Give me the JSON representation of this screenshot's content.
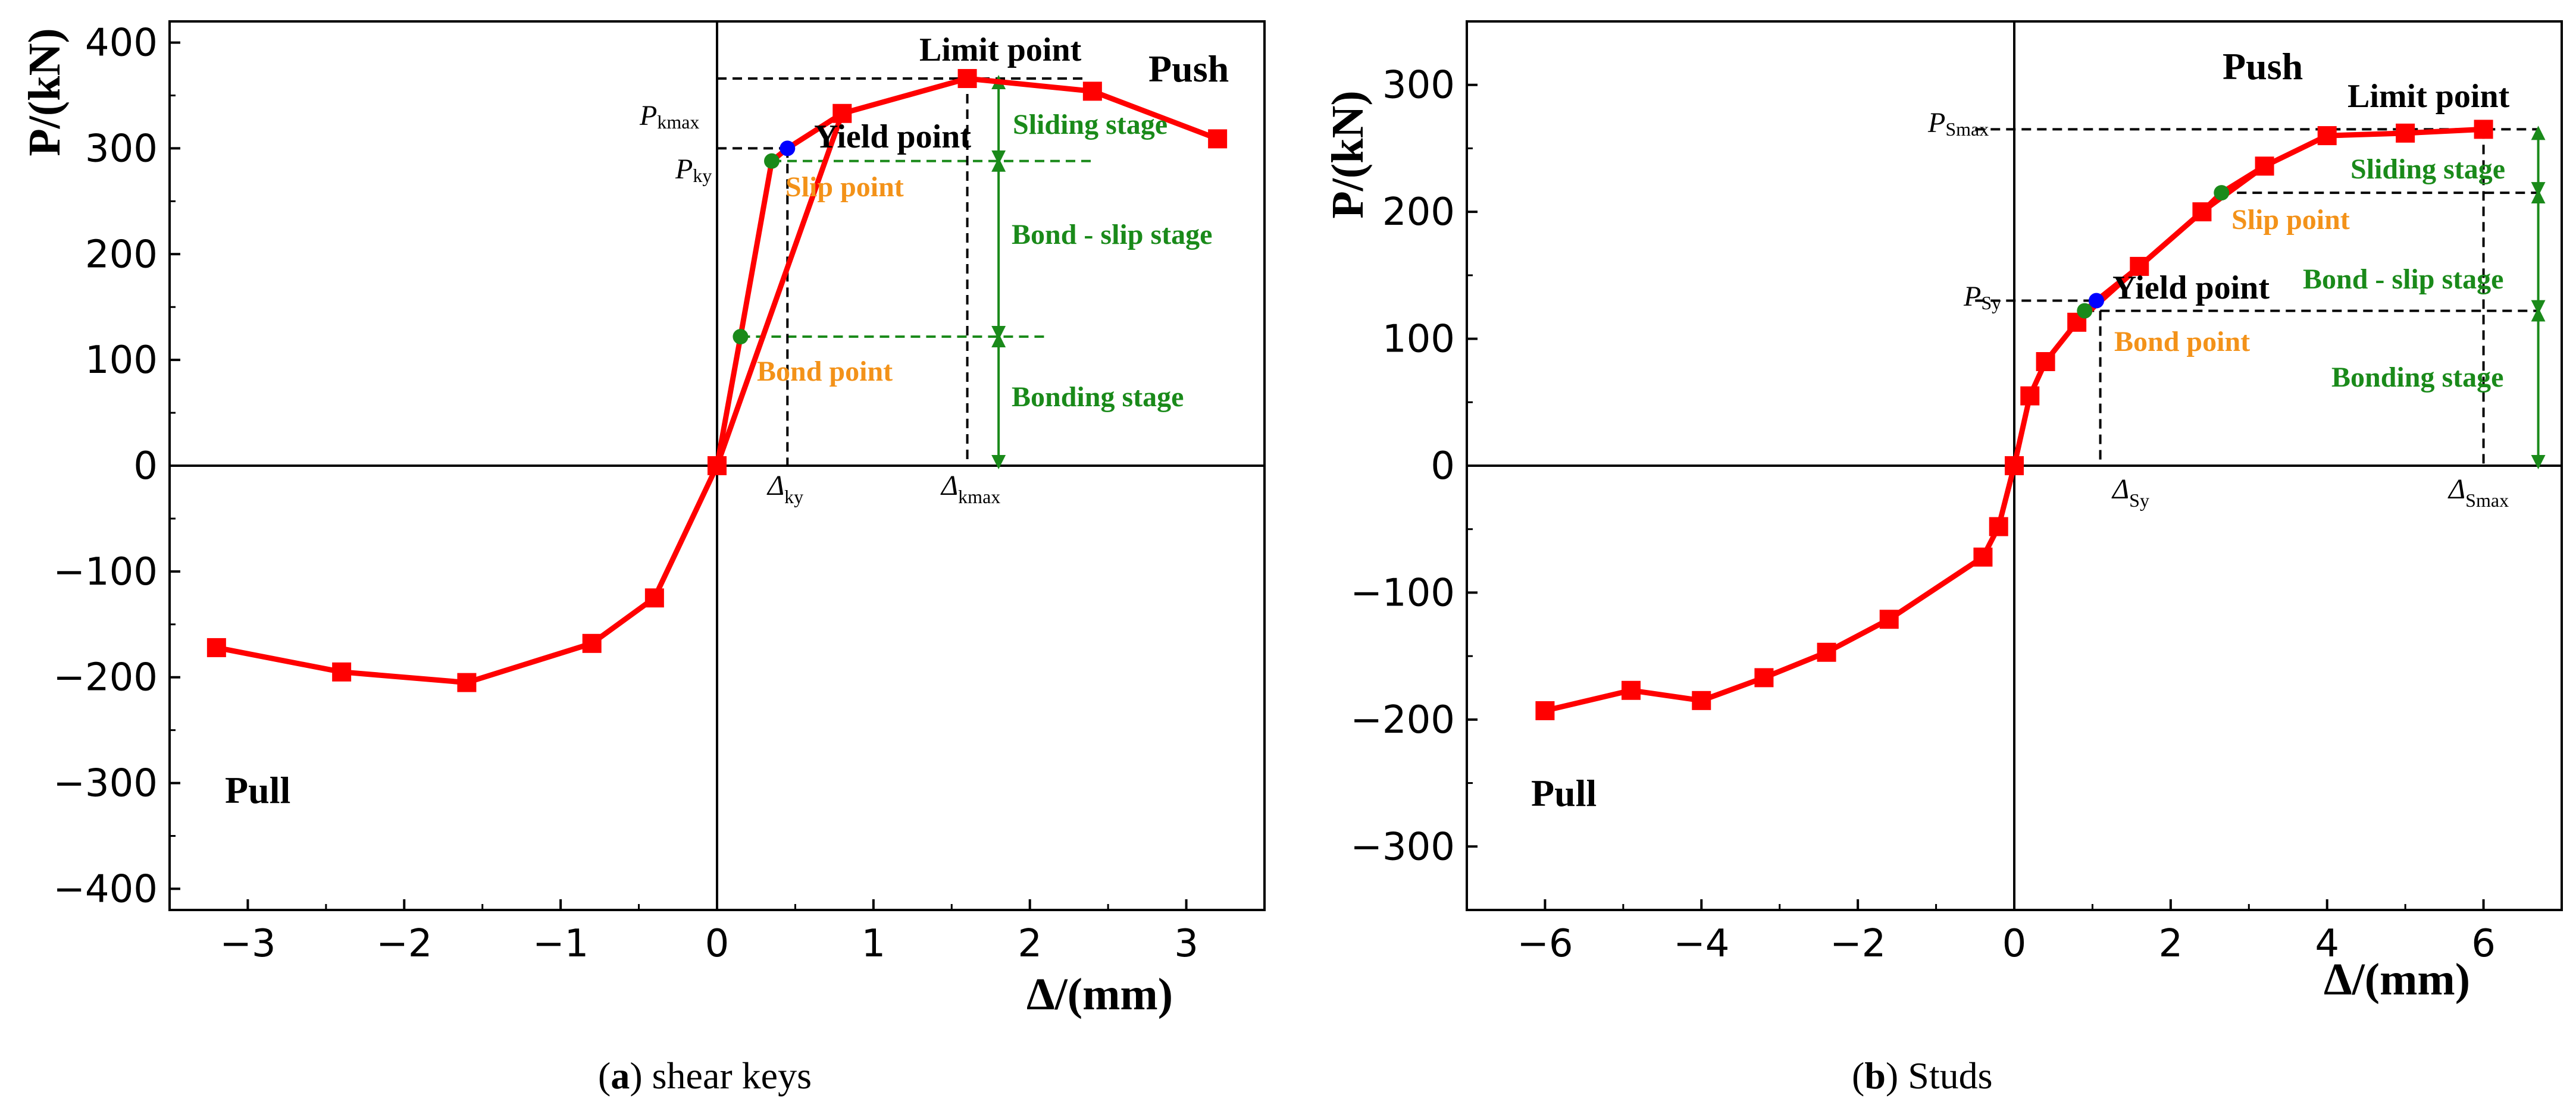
{
  "chart_data": [
    {
      "type": "line",
      "caption_letter": "a",
      "caption_text": "shear keys",
      "xlabel": "Δ/(mm)",
      "ylabel": "P/(kN)",
      "xlim": [
        -3.5,
        3.5
      ],
      "ylim": [
        -420,
        420
      ],
      "xticks": [
        "−3",
        "−2",
        "−1",
        "0",
        "1",
        "2",
        "3"
      ],
      "xtick_values": [
        -3,
        -2,
        -1,
        0,
        1,
        2,
        3
      ],
      "yticks": [
        "−400",
        "−300",
        "−200",
        "−100",
        "0",
        "100",
        "200",
        "300",
        "400"
      ],
      "ytick_values": [
        -400,
        -300,
        -200,
        -100,
        0,
        100,
        200,
        300,
        400
      ],
      "series": [
        {
          "color": "#ff0000",
          "marker": "square",
          "x": [
            -3.2,
            -2.4,
            -1.6,
            -0.8,
            -0.4,
            0,
            0.8,
            1.6,
            2.4,
            3.2
          ],
          "y": [
            -172,
            -195,
            -205,
            -168,
            -125,
            0,
            333,
            366,
            354,
            309
          ]
        },
        {
          "color": "#ff0000",
          "marker": "none",
          "x": [
            0,
            0.15,
            0.35,
            0.45,
            0.8
          ],
          "y": [
            0,
            122,
            288,
            300,
            333
          ]
        }
      ],
      "points": [
        {
          "label": "Yield point",
          "x": 0.45,
          "y": 300,
          "color": "#0000ff"
        },
        {
          "label": "Slip point",
          "x": 0.35,
          "y": 288,
          "color": "#1a8a1a"
        },
        {
          "label": "Bond point",
          "x": 0.15,
          "y": 122,
          "color": "#1a8a1a"
        }
      ],
      "annotations": {
        "limit_point": "Limit point",
        "push": "Push",
        "pull": "Pull",
        "yield_point": "Yield point",
        "slip_point": "Slip point",
        "bond_point": "Bond point",
        "sliding_stage": "Sliding stage",
        "bond_slip_stage": "Bond - slip stage",
        "bonding_stage": "Bonding stage",
        "p_max_sym": "P",
        "p_max_sub": "kmax",
        "p_y_sym": "P",
        "p_y_sub": "ky",
        "d_y_sym": "Δ",
        "d_y_sub": "ky",
        "d_max_sym": "Δ",
        "d_max_sub": "kmax"
      }
    },
    {
      "type": "line",
      "caption_letter": "b",
      "caption_text": "Studs",
      "xlabel": "Δ/(mm)",
      "ylabel": "P/(kN)",
      "xlim": [
        -7,
        7
      ],
      "ylim": [
        -350,
        350
      ],
      "xticks": [
        "−6",
        "−4",
        "−2",
        "0",
        "2",
        "4",
        "6"
      ],
      "xtick_values": [
        -6,
        -4,
        -2,
        0,
        2,
        4,
        6
      ],
      "yticks": [
        "−300",
        "−200",
        "−100",
        "0",
        "100",
        "200",
        "300"
      ],
      "ytick_values": [
        -300,
        -200,
        -100,
        0,
        100,
        200,
        300
      ],
      "series": [
        {
          "color": "#ff0000",
          "marker": "square",
          "x": [
            -6,
            -4.9,
            -4,
            -3.2,
            -2.4,
            -1.6,
            -0.4,
            -0.2,
            0,
            0.2,
            0.4,
            0.8,
            1.6,
            2.4,
            3.2,
            4,
            5,
            6
          ],
          "y": [
            -193,
            -177,
            -185,
            -167,
            -147,
            -121,
            -72,
            -48,
            0,
            55,
            82,
            113,
            157,
            200,
            236,
            260,
            262,
            265
          ]
        },
        {
          "color": "#ff0000",
          "marker": "none",
          "x": [
            0.8,
            0.9,
            1.05,
            1.6,
            2.4,
            2.65,
            3.2
          ],
          "y": [
            113,
            122,
            130,
            157,
            200,
            215,
            236
          ]
        }
      ],
      "points": [
        {
          "label": "Yield point",
          "x": 1.05,
          "y": 130,
          "color": "#0000ff"
        },
        {
          "label": "Bond point",
          "x": 0.9,
          "y": 122,
          "color": "#1a8a1a"
        },
        {
          "label": "Slip point",
          "x": 2.65,
          "y": 215,
          "color": "#1a8a1a"
        }
      ],
      "annotations": {
        "limit_point": "Limit point",
        "push": "Push",
        "pull": "Pull",
        "yield_point": "Yield point",
        "slip_point": "Slip point",
        "bond_point": "Bond point",
        "sliding_stage": "Sliding stage",
        "bond_slip_stage": "Bond - slip stage",
        "bonding_stage": "Bonding stage",
        "p_max_sym": "P",
        "p_max_sub": "Smax",
        "p_y_sym": "P",
        "p_y_sub": "Sy",
        "d_y_sym": "Δ",
        "d_y_sub": "Sy",
        "d_max_sym": "Δ",
        "d_max_sub": "Smax"
      }
    }
  ]
}
